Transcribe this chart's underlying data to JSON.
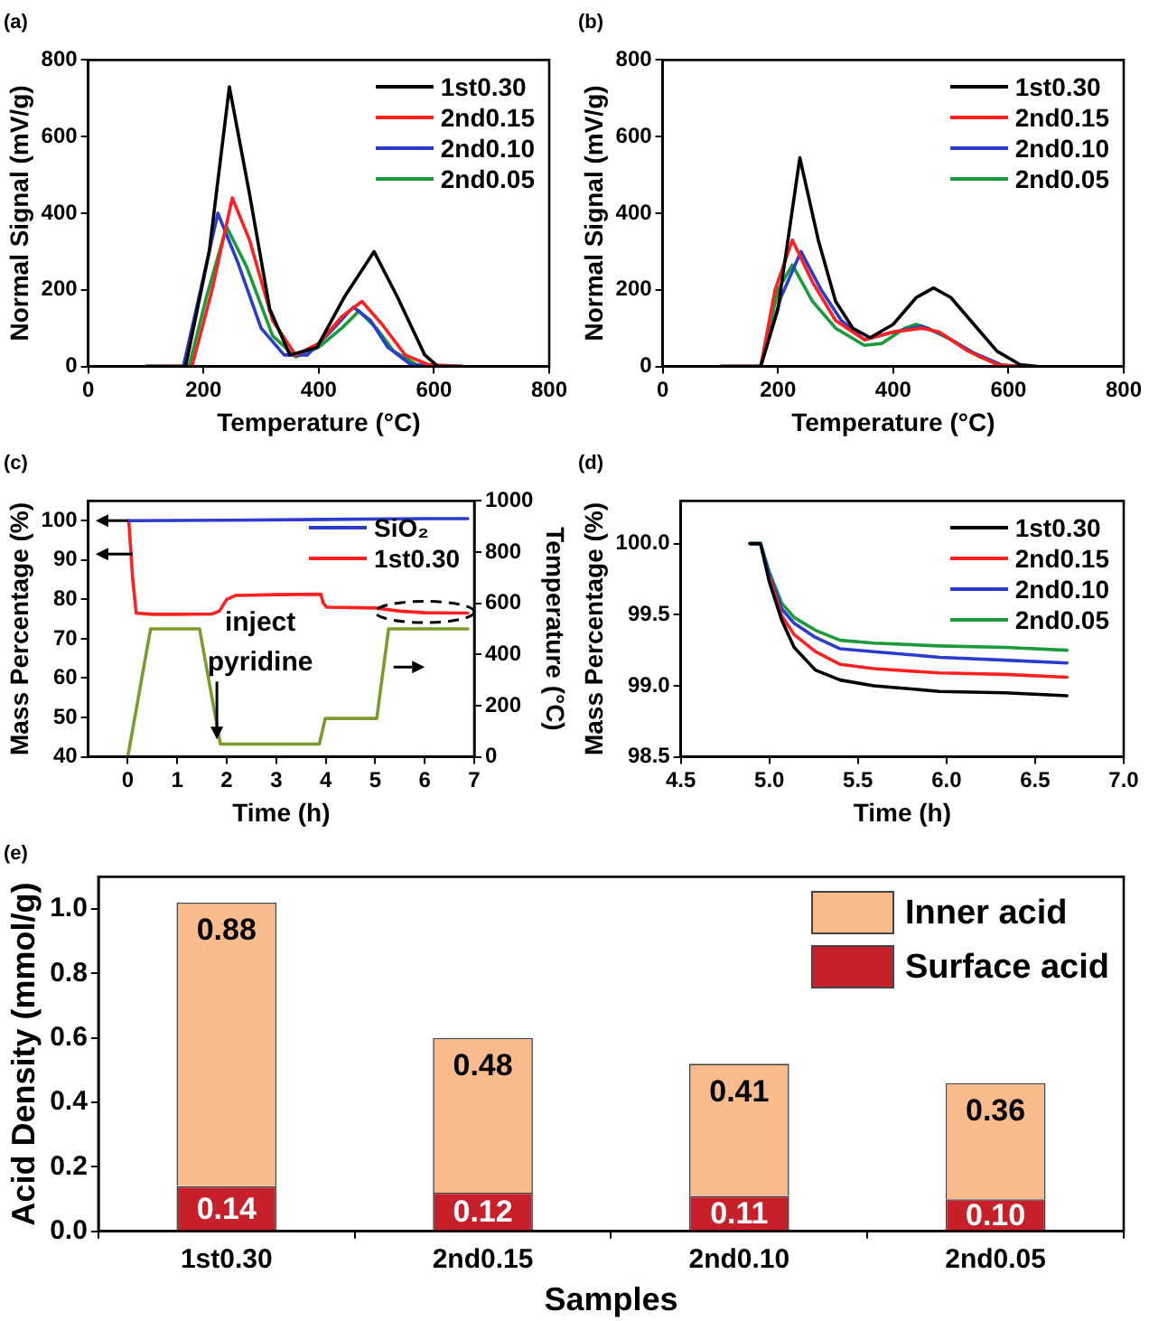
{
  "chart_data": [
    {
      "type": "line",
      "title": "(a)",
      "xlabel": "Temperature (°C)",
      "ylabel": "Normal Signal (mV/g)",
      "xlim": [
        0,
        800
      ],
      "xticks": [
        0,
        200,
        400,
        600,
        800
      ],
      "ylim": [
        0,
        800
      ],
      "yticks": [
        0,
        200,
        400,
        600,
        800
      ],
      "legend": "top right",
      "series": [
        {
          "name": "1st0.30",
          "color": "#000000",
          "x": [
            100,
            169,
            210,
            245,
            280,
            315,
            350,
            397,
            444,
            496,
            537,
            584,
            607,
            650
          ],
          "values": [
            0,
            0,
            300,
            730,
            450,
            150,
            30,
            50,
            180,
            300,
            180,
            30,
            0,
            0
          ]
        },
        {
          "name": "2nd0.15",
          "color": "#ff2020",
          "x": [
            100,
            180,
            215,
            250,
            280,
            320,
            360,
            400,
            440,
            475,
            510,
            550,
            590,
            650
          ],
          "values": [
            0,
            0,
            200,
            440,
            330,
            120,
            30,
            60,
            130,
            170,
            110,
            30,
            5,
            0
          ]
        },
        {
          "name": "2nd0.10",
          "color": "#2a3ccc",
          "x": [
            100,
            165,
            195,
            225,
            260,
            300,
            340,
            380,
            420,
            460,
            490,
            520,
            560,
            600
          ],
          "values": [
            0,
            0,
            200,
            400,
            270,
            100,
            30,
            30,
            90,
            155,
            120,
            50,
            5,
            0
          ]
        },
        {
          "name": "2nd0.05",
          "color": "#1a9a3a",
          "x": [
            100,
            175,
            205,
            240,
            275,
            320,
            360,
            400,
            440,
            470,
            500,
            530,
            570,
            650
          ],
          "values": [
            0,
            0,
            180,
            365,
            260,
            80,
            25,
            50,
            100,
            145,
            100,
            40,
            5,
            0
          ]
        }
      ]
    },
    {
      "type": "line",
      "title": "(b)",
      "xlabel": "Temperature (°C)",
      "ylabel": "Normal Signal (mV/g)",
      "xlim": [
        0,
        800
      ],
      "xticks": [
        0,
        200,
        400,
        600,
        800
      ],
      "ylim": [
        0,
        800
      ],
      "yticks": [
        0,
        200,
        400,
        600,
        800
      ],
      "legend": "top right",
      "series": [
        {
          "name": "1st0.30",
          "color": "#000000",
          "x": [
            100,
            170,
            200,
            238,
            270,
            300,
            330,
            360,
            400,
            440,
            470,
            500,
            540,
            580,
            620,
            650
          ],
          "values": [
            0,
            0,
            150,
            545,
            330,
            170,
            100,
            75,
            110,
            180,
            205,
            180,
            110,
            40,
            5,
            0
          ]
        },
        {
          "name": "2nd0.15",
          "color": "#ff2020",
          "x": [
            100,
            170,
            195,
            225,
            260,
            300,
            350,
            400,
            450,
            480,
            530,
            580,
            620
          ],
          "values": [
            0,
            0,
            200,
            330,
            220,
            120,
            70,
            90,
            100,
            90,
            40,
            5,
            0
          ]
        },
        {
          "name": "2nd0.10",
          "color": "#2a3ccc",
          "x": [
            100,
            170,
            205,
            240,
            275,
            310,
            350,
            400,
            450,
            490,
            540,
            590,
            620
          ],
          "values": [
            0,
            0,
            180,
            300,
            200,
            120,
            70,
            90,
            105,
            80,
            35,
            3,
            0
          ]
        },
        {
          "name": "2nd0.05",
          "color": "#1a9a3a",
          "x": [
            100,
            170,
            200,
            225,
            260,
            300,
            350,
            380,
            420,
            440,
            460,
            500,
            550,
            590,
            620
          ],
          "values": [
            0,
            0,
            200,
            265,
            170,
            100,
            55,
            60,
            100,
            110,
            100,
            70,
            25,
            3,
            0
          ]
        }
      ]
    },
    {
      "type": "line",
      "title": "(c)",
      "xlabel": "Time (h)",
      "ylabel": "Mass Percentage (%)",
      "y2label": "Temperature (°C)",
      "xlim": [
        -0.8,
        7
      ],
      "xticks": [
        0,
        1,
        2,
        3,
        4,
        5,
        6,
        7
      ],
      "ylim": [
        40,
        105
      ],
      "yticks": [
        40,
        50,
        60,
        70,
        80,
        90,
        100
      ],
      "y2lim": [
        0,
        1000
      ],
      "y2ticks": [
        0,
        200,
        400,
        600,
        800,
        1000
      ],
      "legend": "top right",
      "annotations": [
        {
          "text": "inject pyridine",
          "x": 1.8,
          "y": 43.5
        }
      ],
      "series": [
        {
          "name": "SiO₂",
          "color": "#2a3ccc",
          "x": [
            0,
            2,
            4,
            6,
            6.87
          ],
          "values": [
            100,
            100.1,
            100.3,
            100.5,
            100.5
          ]
        },
        {
          "name": "1st0.30",
          "color": "#ff2020",
          "x": [
            0,
            0.02,
            0.1,
            0.17,
            0.5,
            1.0,
            1.7,
            1.85,
            2.0,
            2.18,
            3.0,
            3.9,
            3.95,
            4.02,
            5.0,
            5.5,
            6.0,
            6.87
          ],
          "values": [
            100,
            100,
            85,
            76.5,
            76.2,
            76.2,
            76.3,
            77,
            80,
            81,
            81.2,
            81.3,
            79,
            78,
            77.8,
            77,
            76.6,
            76.5
          ]
        },
        {
          "color": "#7d9a2c",
          "axis": "y2",
          "x": [
            0,
            0.46,
            1.45,
            1.87,
            3.87,
            3.99,
            5.03,
            5.27,
            6.87
          ],
          "values": [
            0,
            500,
            500,
            50,
            50,
            150,
            150,
            500,
            500
          ]
        }
      ]
    },
    {
      "type": "line",
      "title": "(d)",
      "xlabel": "Time (h)",
      "ylabel": "Mass Percentage (%)",
      "xlim": [
        4.5,
        7
      ],
      "xticks": [
        {
          "value": 4.5,
          "label": "4.5"
        },
        {
          "value": 5,
          "label": "5.0"
        },
        {
          "value": 5.5,
          "label": "5.5"
        },
        {
          "value": 6,
          "label": "6.0"
        },
        {
          "value": 6.5,
          "label": "6.5"
        },
        {
          "value": 7,
          "label": "7.0"
        }
      ],
      "ylim": [
        98.5,
        100.3
      ],
      "yticks": [
        {
          "value": 98.5,
          "label": "98.5"
        },
        {
          "value": 99,
          "label": "99.0"
        },
        {
          "value": 99.5,
          "label": "99.5"
        },
        {
          "value": 100,
          "label": "100.0"
        }
      ],
      "legend": "top right",
      "series": [
        {
          "name": "1st0.30",
          "color": "#000000",
          "x": [
            4.89,
            4.95,
            5.0,
            5.07,
            5.14,
            5.26,
            5.4,
            5.59,
            5.96,
            6.33,
            6.68
          ],
          "values": [
            100,
            100,
            99.73,
            99.46,
            99.27,
            99.11,
            99.04,
            99.0,
            98.96,
            98.95,
            98.93
          ]
        },
        {
          "name": "2nd0.15",
          "color": "#ff2020",
          "x": [
            5.0,
            5.07,
            5.14,
            5.26,
            5.4,
            5.59,
            5.96,
            6.33,
            6.68
          ],
          "values": [
            99.76,
            99.49,
            99.36,
            99.24,
            99.15,
            99.12,
            99.09,
            99.08,
            99.06
          ]
        },
        {
          "name": "2nd0.10",
          "color": "#2a3ccc",
          "x": [
            4.89,
            4.95,
            5.0,
            5.07,
            5.14,
            5.26,
            5.4,
            5.59,
            5.96,
            6.33,
            6.68
          ],
          "values": [
            100,
            100,
            99.78,
            99.54,
            99.44,
            99.34,
            99.26,
            99.24,
            99.2,
            99.18,
            99.16
          ]
        },
        {
          "name": "2nd0.05",
          "color": "#1a9a3a",
          "x": [
            4.89,
            4.95,
            5.0,
            5.07,
            5.14,
            5.26,
            5.4,
            5.59,
            5.96,
            6.33,
            6.68
          ],
          "values": [
            100,
            100,
            99.8,
            99.58,
            99.48,
            99.39,
            99.32,
            99.3,
            99.28,
            99.27,
            99.25
          ]
        }
      ]
    },
    {
      "type": "bar",
      "title": "(e)",
      "xlabel": "Samples",
      "ylabel": "Acid Density (mmol/g)",
      "categories": [
        "1st0.30",
        "2nd0.15",
        "2nd0.10",
        "2nd0.05"
      ],
      "ylim": [
        0,
        1.1
      ],
      "yticks": [
        {
          "value": 0,
          "label": "0.0"
        },
        {
          "value": 0.2,
          "label": "0.2"
        },
        {
          "value": 0.4,
          "label": "0.4"
        },
        {
          "value": 0.6,
          "label": "0.6"
        },
        {
          "value": 0.8,
          "label": "0.8"
        },
        {
          "value": 1,
          "label": "1.0"
        }
      ],
      "stacked": true,
      "legend": "top right",
      "series": [
        {
          "name": "Surface acid",
          "color": "#c8202a",
          "values": [
            0.14,
            0.12,
            0.11,
            0.1
          ],
          "value_labels": [
            "0.14",
            "0.12",
            "0.11",
            "0.10"
          ]
        },
        {
          "name": "Inner acid",
          "color": "#f9bb8c",
          "values": [
            0.88,
            0.48,
            0.41,
            0.36
          ],
          "value_labels": [
            "0.88",
            "0.48",
            "0.41",
            "0.36"
          ]
        }
      ]
    }
  ]
}
